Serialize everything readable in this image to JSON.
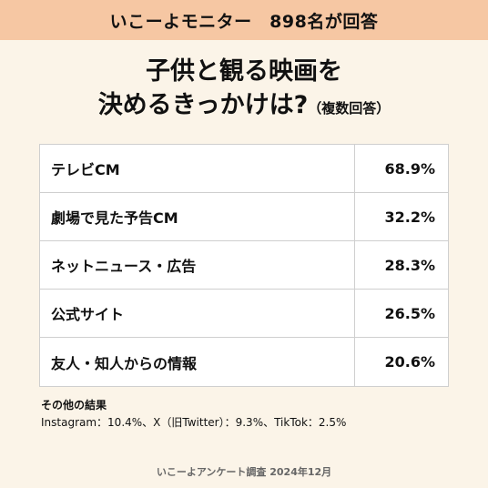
{
  "banner": "いこーよモニター　898名が回答",
  "title": {
    "line1": "子供と観る映画を",
    "line2": "決めるきっかけは?",
    "note": "（複数回答）"
  },
  "chart_data": {
    "type": "table",
    "unit": "%",
    "categories": [
      "テレビCM",
      "劇場で見た予告CM",
      "ネットニュース・広告",
      "公式サイト",
      "友人・知人からの情報"
    ],
    "values": [
      68.9,
      32.2,
      28.3,
      26.5,
      20.6
    ],
    "value_labels": [
      "68.9%",
      "32.2%",
      "28.3%",
      "26.5%",
      "20.6%"
    ]
  },
  "others": {
    "title": "その他の結果",
    "text": "Instagram：10.4%、X（旧Twitter）：9.3%、TikTok：2.5%"
  },
  "footer": "いこーよアンケート調査 2024年12月"
}
